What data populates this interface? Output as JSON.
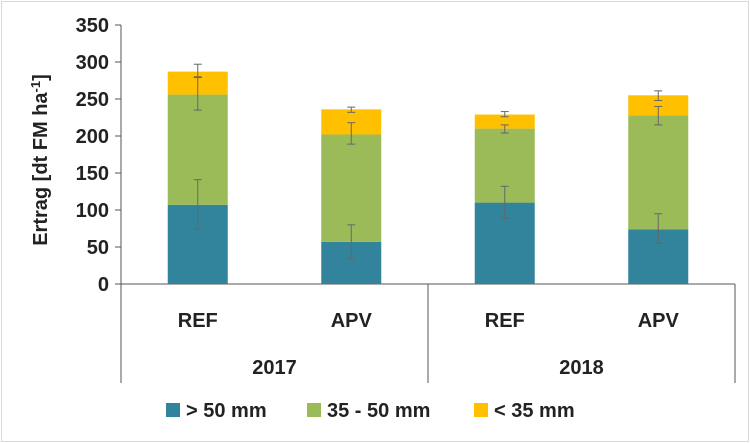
{
  "chart_data": {
    "type": "bar",
    "stacked": true,
    "groups": [
      "2017",
      "2018"
    ],
    "categories": [
      "REF",
      "APV",
      "REF",
      "APV"
    ],
    "category_groups": [
      0,
      0,
      1,
      1
    ],
    "ylabel": "Ertrag [dt FM ha",
    "ylabel_sup": "-1",
    "ylabel_end": "]",
    "ylim": [
      0,
      350
    ],
    "yticks": [
      "0",
      "50",
      "100",
      "150",
      "200",
      "250",
      "300",
      "350"
    ],
    "ytick_values": [
      0,
      50,
      100,
      150,
      200,
      250,
      300,
      350
    ],
    "grid": false,
    "legend_position": "bottom",
    "series": [
      {
        "name": "> 50 mm",
        "color": "#31849b",
        "values": [
          107,
          57,
          110,
          74
        ],
        "errors": [
          [
            74,
            141
          ],
          [
            34,
            80
          ],
          [
            89,
            132
          ],
          [
            55,
            95
          ]
        ]
      },
      {
        "name": "35 - 50 mm",
        "color": "#9bbb59",
        "values": [
          149,
          145,
          100,
          154
        ],
        "errors": [
          [
            235,
            280
          ],
          [
            189,
            218
          ],
          [
            204,
            215
          ],
          [
            215,
            240
          ]
        ]
      },
      {
        "name": "< 35 mm",
        "color": "#ffc000",
        "values": [
          31,
          34,
          19,
          27
        ],
        "errors": [
          [
            279,
            297
          ],
          [
            232,
            239
          ],
          [
            226,
            233
          ],
          [
            248,
            261
          ]
        ]
      }
    ]
  }
}
